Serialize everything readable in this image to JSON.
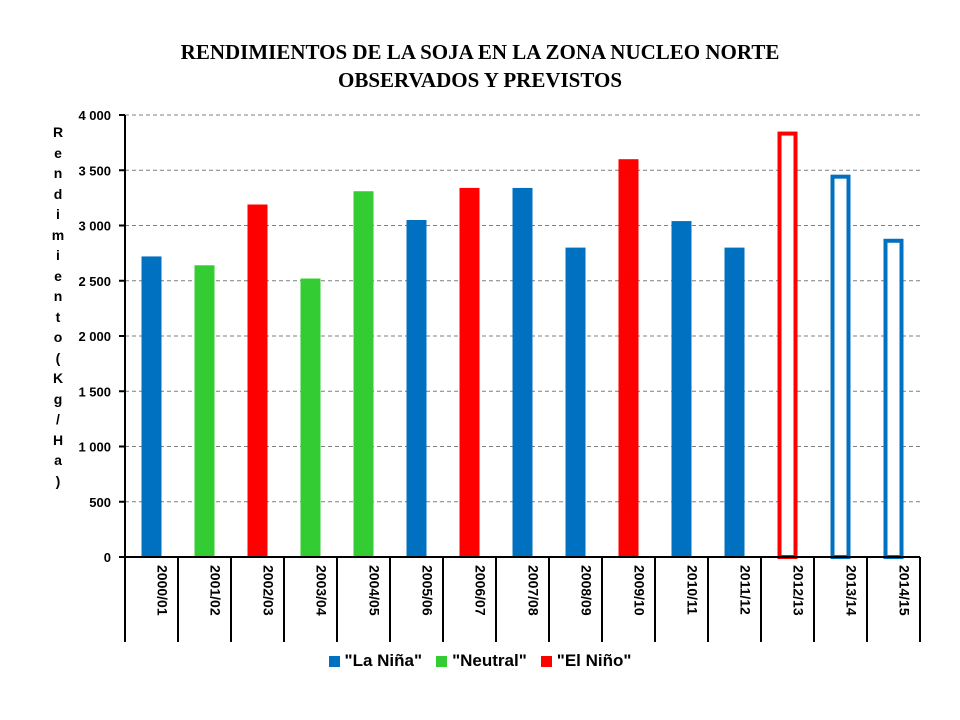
{
  "chart_data": {
    "type": "bar",
    "title": [
      "RENDIMIENTOS DE LA SOJA EN LA ZONA NUCLEO NORTE",
      "OBSERVADOS Y PREVISTOS"
    ],
    "ylabel": "Rendimiento (Kg/Ha)",
    "xlabel": "",
    "ylim": [
      0,
      4000
    ],
    "yticks": [
      "0",
      "500",
      "1 000",
      "1 500",
      "2 000",
      "2 500",
      "3 000",
      "3 500",
      "4 000"
    ],
    "grid": "horizontal-dashed",
    "legend_position": "bottom",
    "categories": [
      "2000/01",
      "2001/02",
      "2002/03",
      "2003/04",
      "2004/05",
      "2005/06",
      "2006/07",
      "2007/08",
      "2008/09",
      "2009/10",
      "2010/11",
      "2011/12",
      "2012/13",
      "2013/14",
      "2014/15"
    ],
    "values": [
      2720,
      2640,
      3190,
      2520,
      3310,
      3050,
      3340,
      3340,
      2800,
      3600,
      3040,
      2800,
      3850,
      3460,
      2880
    ],
    "phase": [
      "La Niña",
      "Neutral",
      "El Niño",
      "Neutral",
      "Neutral",
      "La Niña",
      "El Niño",
      "La Niña",
      "La Niña",
      "El Niño",
      "La Niña",
      "La Niña",
      "El Niño",
      "La Niña",
      "La Niña"
    ],
    "predicted": [
      false,
      false,
      false,
      false,
      false,
      false,
      false,
      false,
      false,
      false,
      false,
      false,
      true,
      true,
      true
    ],
    "legend": [
      {
        "label": "\"La Niña\"",
        "color": "#0070C0"
      },
      {
        "label": "\"Neutral\"",
        "color": "#33CC33"
      },
      {
        "label": "\"El Niño\"",
        "color": "#FF0000"
      }
    ],
    "colors": {
      "La Niña": "#0070C0",
      "Neutral": "#33CC33",
      "El Niño": "#FF0000"
    }
  }
}
